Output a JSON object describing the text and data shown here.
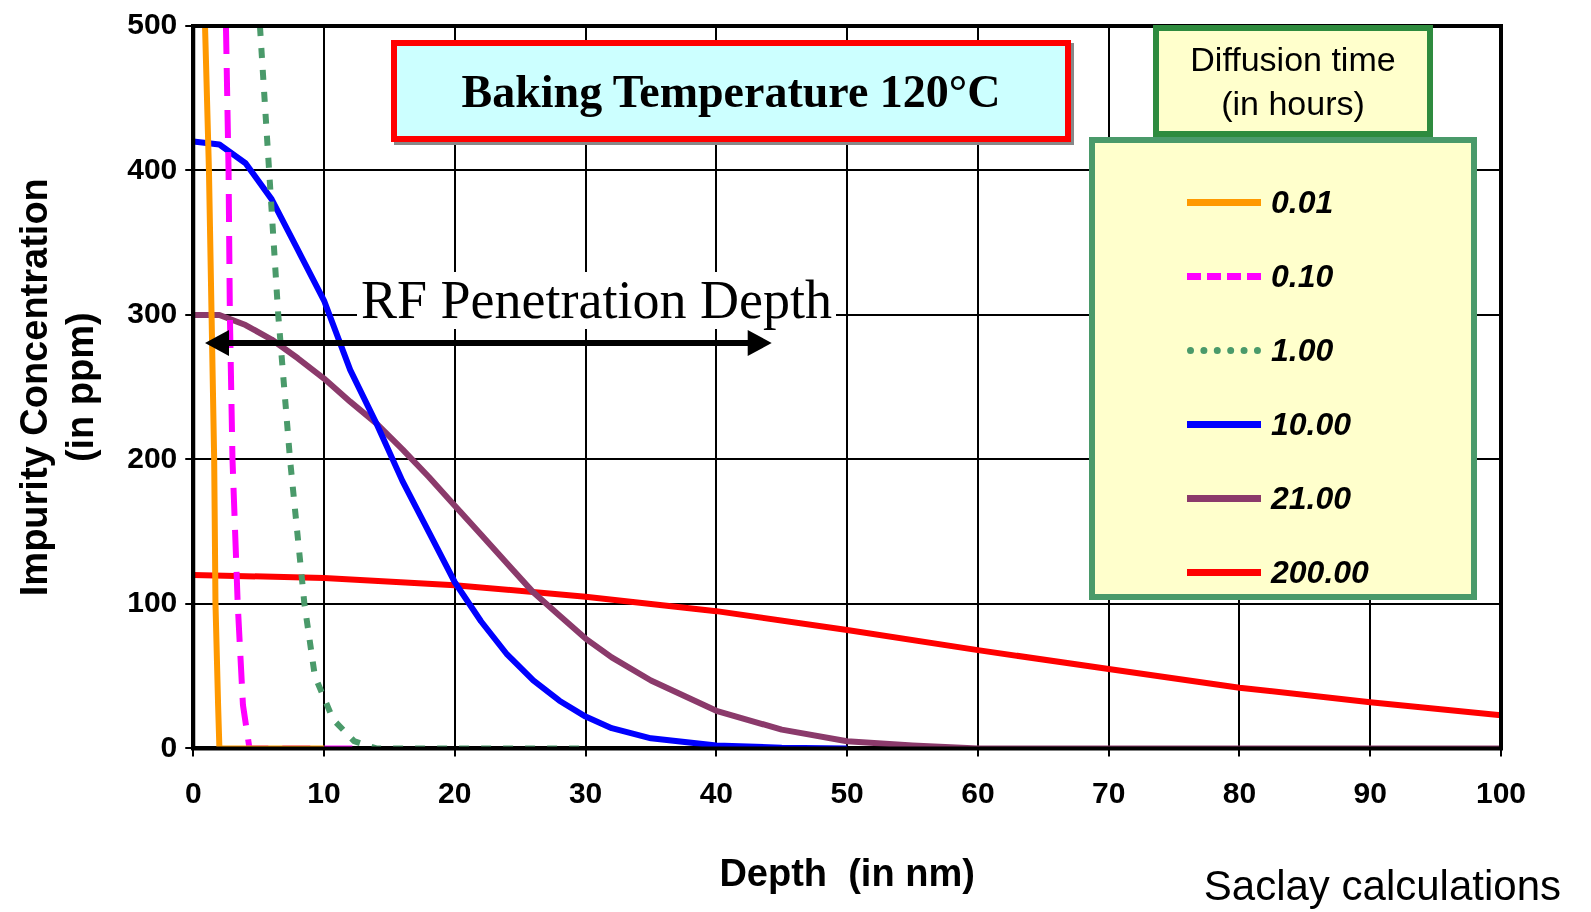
{
  "chart_data": {
    "type": "line",
    "title": "Baking Temperature 120°C",
    "xlabel": "Depth  (in nm)",
    "ylabel": "Impurity Concentration\n(in ppm)",
    "legend_title": "Diffusion time\n(in hours)",
    "legend": "right",
    "grid": true,
    "marker": "none",
    "xlim": [
      0,
      100
    ],
    "xticks": [
      0,
      10,
      20,
      30,
      40,
      50,
      60,
      70,
      80,
      90,
      100
    ],
    "ylim": [
      0,
      500
    ],
    "yticks": [
      0,
      100,
      200,
      300,
      400,
      500
    ],
    "series": [
      {
        "name": "0.01",
        "color": "#ff9900",
        "line_style": "solid",
        "x": [
          0.9,
          1.2,
          1.4,
          1.6,
          1.7,
          1.9,
          2.0,
          5,
          10
        ],
        "values": [
          500,
          400,
          300,
          200,
          100,
          30,
          0,
          0,
          0
        ]
      },
      {
        "name": "0.10",
        "color": "#ff00ff",
        "line_style": "dashed",
        "x": [
          2.5,
          2.7,
          2.8,
          3.0,
          3.4,
          3.8,
          4.3,
          8,
          13
        ],
        "values": [
          500,
          400,
          300,
          200,
          100,
          30,
          0,
          0,
          0
        ]
      },
      {
        "name": "1.00",
        "color": "#4a9a6a",
        "line_style": "dotted",
        "x": [
          5.1,
          5.8,
          6.5,
          7.4,
          8.5,
          9.3,
          10.7,
          12.3,
          14,
          30
        ],
        "values": [
          500,
          400,
          300,
          200,
          100,
          50,
          20,
          5,
          0,
          0
        ]
      },
      {
        "name": "10.00",
        "color": "#0000ff",
        "line_style": "solid",
        "x": [
          0,
          2,
          4,
          6,
          8,
          10,
          12,
          14,
          16,
          18,
          20,
          22,
          24,
          26,
          28,
          30,
          32,
          35,
          40,
          45,
          50
        ],
        "values": [
          420,
          418,
          405,
          380,
          345,
          310,
          262,
          225,
          185,
          150,
          115,
          88,
          65,
          47,
          33,
          22,
          14,
          7,
          2,
          0.5,
          0
        ]
      },
      {
        "name": "21.00",
        "color": "#8b3a6b",
        "line_style": "solid",
        "x": [
          0,
          2,
          4,
          6,
          8,
          10,
          12,
          14,
          16,
          18,
          20,
          22,
          24,
          26,
          28,
          30,
          32,
          35,
          40,
          45,
          50,
          55,
          60,
          100
        ],
        "values": [
          300,
          300,
          293,
          283,
          270,
          256,
          240,
          225,
          207,
          188,
          168,
          148,
          128,
          108,
          92,
          76,
          63,
          47,
          26,
          13,
          5,
          2,
          0,
          0
        ]
      },
      {
        "name": "200.00",
        "color": "#ff0000",
        "line_style": "solid",
        "x": [
          0,
          10,
          20,
          30,
          40,
          50,
          60,
          70,
          80,
          90,
          100
        ],
        "values": [
          120,
          118,
          113,
          105,
          95,
          82,
          68,
          55,
          42,
          32,
          23
        ]
      }
    ],
    "annotations": [
      "RF Penetration Depth",
      "Saclay calculations"
    ]
  }
}
